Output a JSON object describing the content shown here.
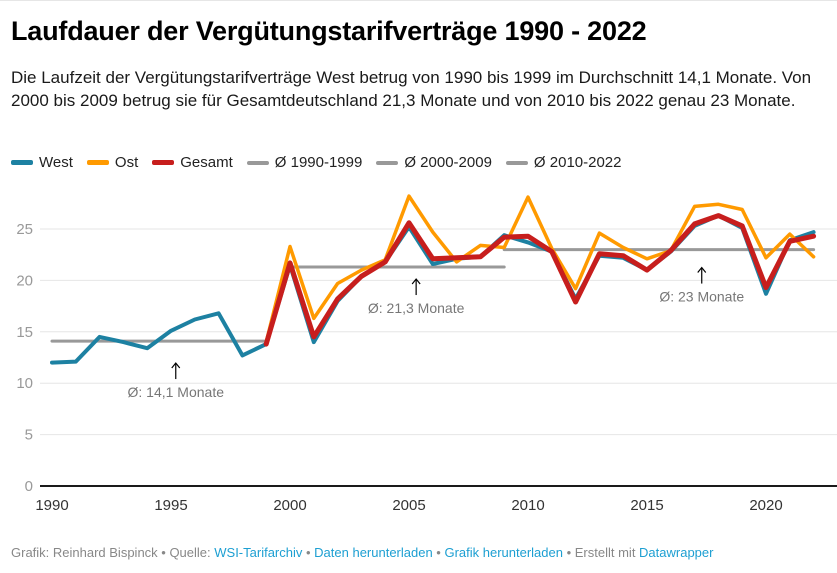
{
  "header": {
    "title": "Laufdauer der Vergütungstarifverträge 1990 - 2022",
    "subtitle": "Die Laufzeit der Vergütungstarifverträge West betrug von 1990 bis 1999 im Durchschnitt 14,1 Monate. Von 2000 bis 2009 betrug sie für Gesamtdeutschland 21,3 Monate und von 2010 bis 2022 genau 23 Monate."
  },
  "legend": [
    {
      "label": "West",
      "color": "#1d81a2"
    },
    {
      "label": "Ost",
      "color": "#ff9a00"
    },
    {
      "label": "Gesamt",
      "color": "#c71e1d"
    },
    {
      "label": "Ø 1990-1999",
      "color": "#999999"
    },
    {
      "label": "Ø 2000-2009",
      "color": "#999999"
    },
    {
      "label": "Ø 2010-2022",
      "color": "#999999"
    }
  ],
  "footer": {
    "prefix": "Grafik: Reinhard Bispinck • Quelle: ",
    "source_link": "WSI-Tarifarchiv",
    "sep1": " • ",
    "download_data": "Daten herunterladen",
    "sep2": " • ",
    "download_chart": "Grafik herunterladen",
    "sep3": " • Erstellt mit ",
    "tool_link": "Datawrapper"
  },
  "chart_data": {
    "type": "line",
    "title": "Laufdauer der Vergütungstarifverträge 1990 - 2022",
    "xlabel": "",
    "ylabel": "",
    "xlim": [
      1990,
      2022
    ],
    "ylim": [
      0,
      27
    ],
    "grid": true,
    "legend_position": "top-left",
    "y_ticks": [
      0,
      5,
      10,
      15,
      20,
      25
    ],
    "x_ticks": [
      1990,
      1995,
      2000,
      2005,
      2010,
      2015,
      2020
    ],
    "series": [
      {
        "name": "West",
        "color": "#1d81a2",
        "x": [
          1990,
          1991,
          1992,
          1993,
          1994,
          1995,
          1996,
          1997,
          1998,
          1999,
          2000,
          2001,
          2002,
          2003,
          2004,
          2005,
          2006,
          2007,
          2008,
          2009,
          2010,
          2011,
          2012,
          2013,
          2014,
          2015,
          2016,
          2017,
          2018,
          2019,
          2020,
          2021,
          2022
        ],
        "values": [
          12.0,
          12.1,
          14.5,
          14.0,
          13.4,
          15.1,
          16.2,
          16.8,
          12.7,
          13.8,
          21.5,
          14.0,
          18.0,
          20.4,
          21.8,
          25.2,
          21.6,
          22.1,
          22.3,
          24.4,
          23.7,
          22.8,
          18.2,
          22.4,
          22.2,
          21.0,
          22.8,
          25.3,
          26.3,
          25.1,
          18.7,
          23.9,
          24.7
        ]
      },
      {
        "name": "Ost",
        "color": "#ff9a00",
        "x": [
          1999,
          2000,
          2001,
          2002,
          2003,
          2004,
          2005,
          2006,
          2007,
          2008,
          2009,
          2010,
          2011,
          2012,
          2013,
          2014,
          2015,
          2016,
          2017,
          2018,
          2019,
          2020,
          2021,
          2022
        ],
        "values": [
          14.0,
          23.3,
          16.3,
          19.7,
          21.0,
          22.0,
          28.2,
          24.7,
          21.8,
          23.4,
          23.2,
          28.1,
          23.1,
          19.2,
          24.6,
          23.2,
          22.1,
          22.9,
          27.2,
          27.4,
          26.9,
          22.2,
          24.5,
          22.3
        ]
      },
      {
        "name": "Gesamt",
        "color": "#c71e1d",
        "x": [
          1999,
          2000,
          2001,
          2002,
          2003,
          2004,
          2005,
          2006,
          2007,
          2008,
          2009,
          2010,
          2011,
          2012,
          2013,
          2014,
          2015,
          2016,
          2017,
          2018,
          2019,
          2020,
          2021,
          2022
        ],
        "values": [
          13.8,
          21.7,
          14.5,
          18.2,
          20.4,
          21.8,
          25.6,
          22.1,
          22.2,
          22.3,
          24.2,
          24.3,
          22.8,
          17.9,
          22.6,
          22.4,
          21.0,
          22.9,
          25.5,
          26.3,
          25.3,
          19.3,
          23.8,
          24.3
        ]
      },
      {
        "name": "Ø 1990-1999",
        "color": "#999999",
        "x": [
          1990,
          1999
        ],
        "values": [
          14.1,
          14.1
        ]
      },
      {
        "name": "Ø 2000-2009",
        "color": "#999999",
        "x": [
          2000,
          2009
        ],
        "values": [
          21.3,
          21.3
        ]
      },
      {
        "name": "Ø 2010-2022",
        "color": "#999999",
        "x": [
          2009,
          2022
        ],
        "values": [
          23.0,
          23.0
        ]
      }
    ],
    "annotations": [
      {
        "text": "Ø: 14,1 Monate",
        "x": 1995.2,
        "y": 14.1
      },
      {
        "text": "Ø: 21,3 Monate",
        "x": 2005.3,
        "y": 21.3
      },
      {
        "text": "Ø: 23 Monate",
        "x": 2017.3,
        "y": 23.0
      }
    ]
  }
}
